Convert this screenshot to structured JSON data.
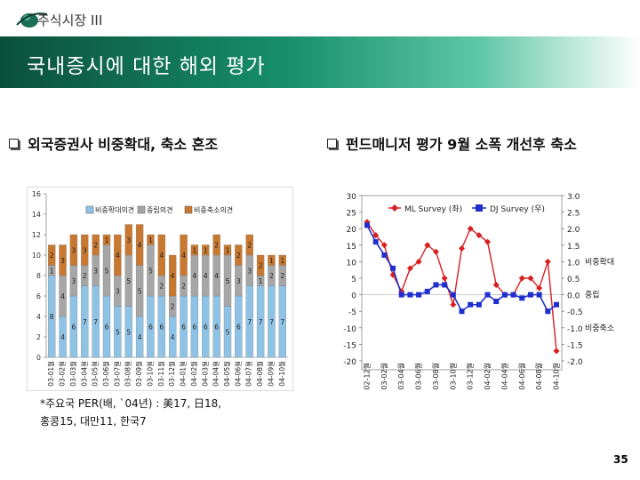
{
  "header": {
    "title": "주식시장 III",
    "logo_icon": "globe-swoosh-icon"
  },
  "banner": {
    "title": "국내증시에 대한 해외 평가"
  },
  "left_heading": "외국증권사 비중확대, 축소 혼조",
  "right_heading": "펀드매니저 평가 9월 소폭 개선후 축소",
  "footnote": {
    "line1": "*주요국 PER(배, `04년) : 美17, 日18,",
    "line2": "홍콩15, 대만11, 한국7"
  },
  "page_number": "35",
  "colors": {
    "overweight": "#8fc3e6",
    "neutral": "#a6a6a6",
    "underweight": "#c9782f",
    "ml": "#d81e1e",
    "dj": "#1f2fcf",
    "banner_dark": "#0b4f3a",
    "banner_light": "#5fc7a5"
  },
  "chart_data": [
    {
      "type": "bar",
      "stacked": true,
      "title": "",
      "legend": [
        "비중확대의견",
        "중립의견",
        "비중축소의견"
      ],
      "ylim": [
        0,
        16
      ],
      "yticks": [
        "0",
        "2",
        "4",
        "6",
        "8",
        "10",
        "12",
        "14",
        "16"
      ],
      "categories": [
        "03-01월",
        "03-02월",
        "03-03월",
        "03-04월",
        "03-05월",
        "03-06월",
        "03-07월",
        "03-08월",
        "03-09월",
        "03-10월",
        "03-11월",
        "03-12월",
        "04-01월",
        "04-02월",
        "04-03월",
        "04-04월",
        "04-05월",
        "04-06월",
        "04-07월",
        "04-08월",
        "04-09월",
        "04-10월"
      ],
      "series": [
        {
          "name": "비중확대의견",
          "values": [
            8,
            4,
            6,
            7,
            7,
            6,
            5,
            5,
            4,
            6,
            6,
            4,
            6,
            6,
            6,
            6,
            5,
            6,
            7,
            7,
            7,
            7
          ],
          "labels": [
            "8",
            "4",
            "6",
            "7",
            "7",
            "6",
            "5",
            "5",
            "4",
            "6",
            "6",
            "4",
            "6",
            "6",
            "6",
            "6",
            "5",
            "6",
            "7",
            "7",
            "7",
            "7"
          ]
        },
        {
          "name": "중립의견",
          "values": [
            1,
            4,
            3,
            2,
            3,
            5,
            3,
            5,
            5,
            5,
            2,
            2,
            2,
            4,
            4,
            4,
            5,
            3,
            3,
            1,
            2,
            2
          ],
          "labels": [
            "1",
            "4",
            "3",
            "2",
            "3",
            "5",
            "3",
            "5",
            "5",
            "5",
            "2",
            "2",
            "2",
            "4",
            "4",
            "4",
            "5",
            "3",
            "3",
            "1",
            "2",
            "2"
          ]
        },
        {
          "name": "비중축소의견",
          "values": [
            2,
            3,
            3,
            3,
            2,
            1,
            4,
            3,
            4,
            1,
            4,
            4,
            4,
            1,
            1,
            2,
            1,
            2,
            2,
            2,
            1,
            1
          ],
          "labels": [
            "2",
            "3",
            "3",
            "3",
            "2",
            "1",
            "4",
            "3",
            "4",
            "1",
            "4",
            "4",
            "4",
            "1",
            "1",
            "2",
            "1",
            "2",
            "2",
            "2",
            "1",
            "1"
          ]
        }
      ]
    },
    {
      "type": "line",
      "title": "",
      "legend": [
        "ML Survey (좌)",
        "DJ Survey (우)"
      ],
      "x": [
        "02-12월",
        "03-01월",
        "03-02월",
        "03-03월",
        "03-04월",
        "03-05월",
        "03-06월",
        "03-07월",
        "03-08월",
        "03-09월",
        "03-10월",
        "03-11월",
        "03-12월",
        "04-01월",
        "04-02월",
        "04-03월",
        "04-04월",
        "04-05월",
        "04-06월",
        "04-07월",
        "04-08월",
        "04-09월",
        "04-10월"
      ],
      "x_tick_labels": [
        "02-12월",
        "03-02월",
        "03-04월",
        "03-06월",
        "03-08월",
        "03-10월",
        "03-12월",
        "04-02월",
        "04-04월",
        "04-06월",
        "04-08월",
        "04-10월"
      ],
      "ylim_left": [
        -20,
        30
      ],
      "ylim_right": [
        -2.0,
        3.0
      ],
      "yticks_left": [
        "-20",
        "-15",
        "-10",
        "-5",
        "0",
        "5",
        "10",
        "15",
        "20",
        "25",
        "30"
      ],
      "yticks_right": [
        "-2.0",
        "-1.5",
        "-1.0",
        "-0.5",
        "0.0",
        "0.5",
        "1.0",
        "1.5",
        "2.0",
        "2.5",
        "3.0"
      ],
      "side_labels": [
        "비중확대",
        "중립",
        "비중축소"
      ],
      "series": [
        {
          "name": "ML Survey (좌)",
          "axis": "left",
          "values": [
            22,
            18,
            15,
            6,
            1,
            8,
            10,
            15,
            13,
            5,
            -3,
            14,
            20,
            18,
            16,
            3,
            0,
            0,
            5,
            5,
            2,
            10,
            -17
          ]
        },
        {
          "name": "DJ Survey (우)",
          "axis": "right",
          "values": [
            2.1,
            1.6,
            1.2,
            0.8,
            0.0,
            0.0,
            0.0,
            0.1,
            0.3,
            0.3,
            0.0,
            -0.5,
            -0.3,
            -0.3,
            0.0,
            -0.2,
            0.0,
            0.0,
            -0.1,
            0.0,
            0.0,
            -0.5,
            -0.3
          ]
        }
      ]
    }
  ]
}
